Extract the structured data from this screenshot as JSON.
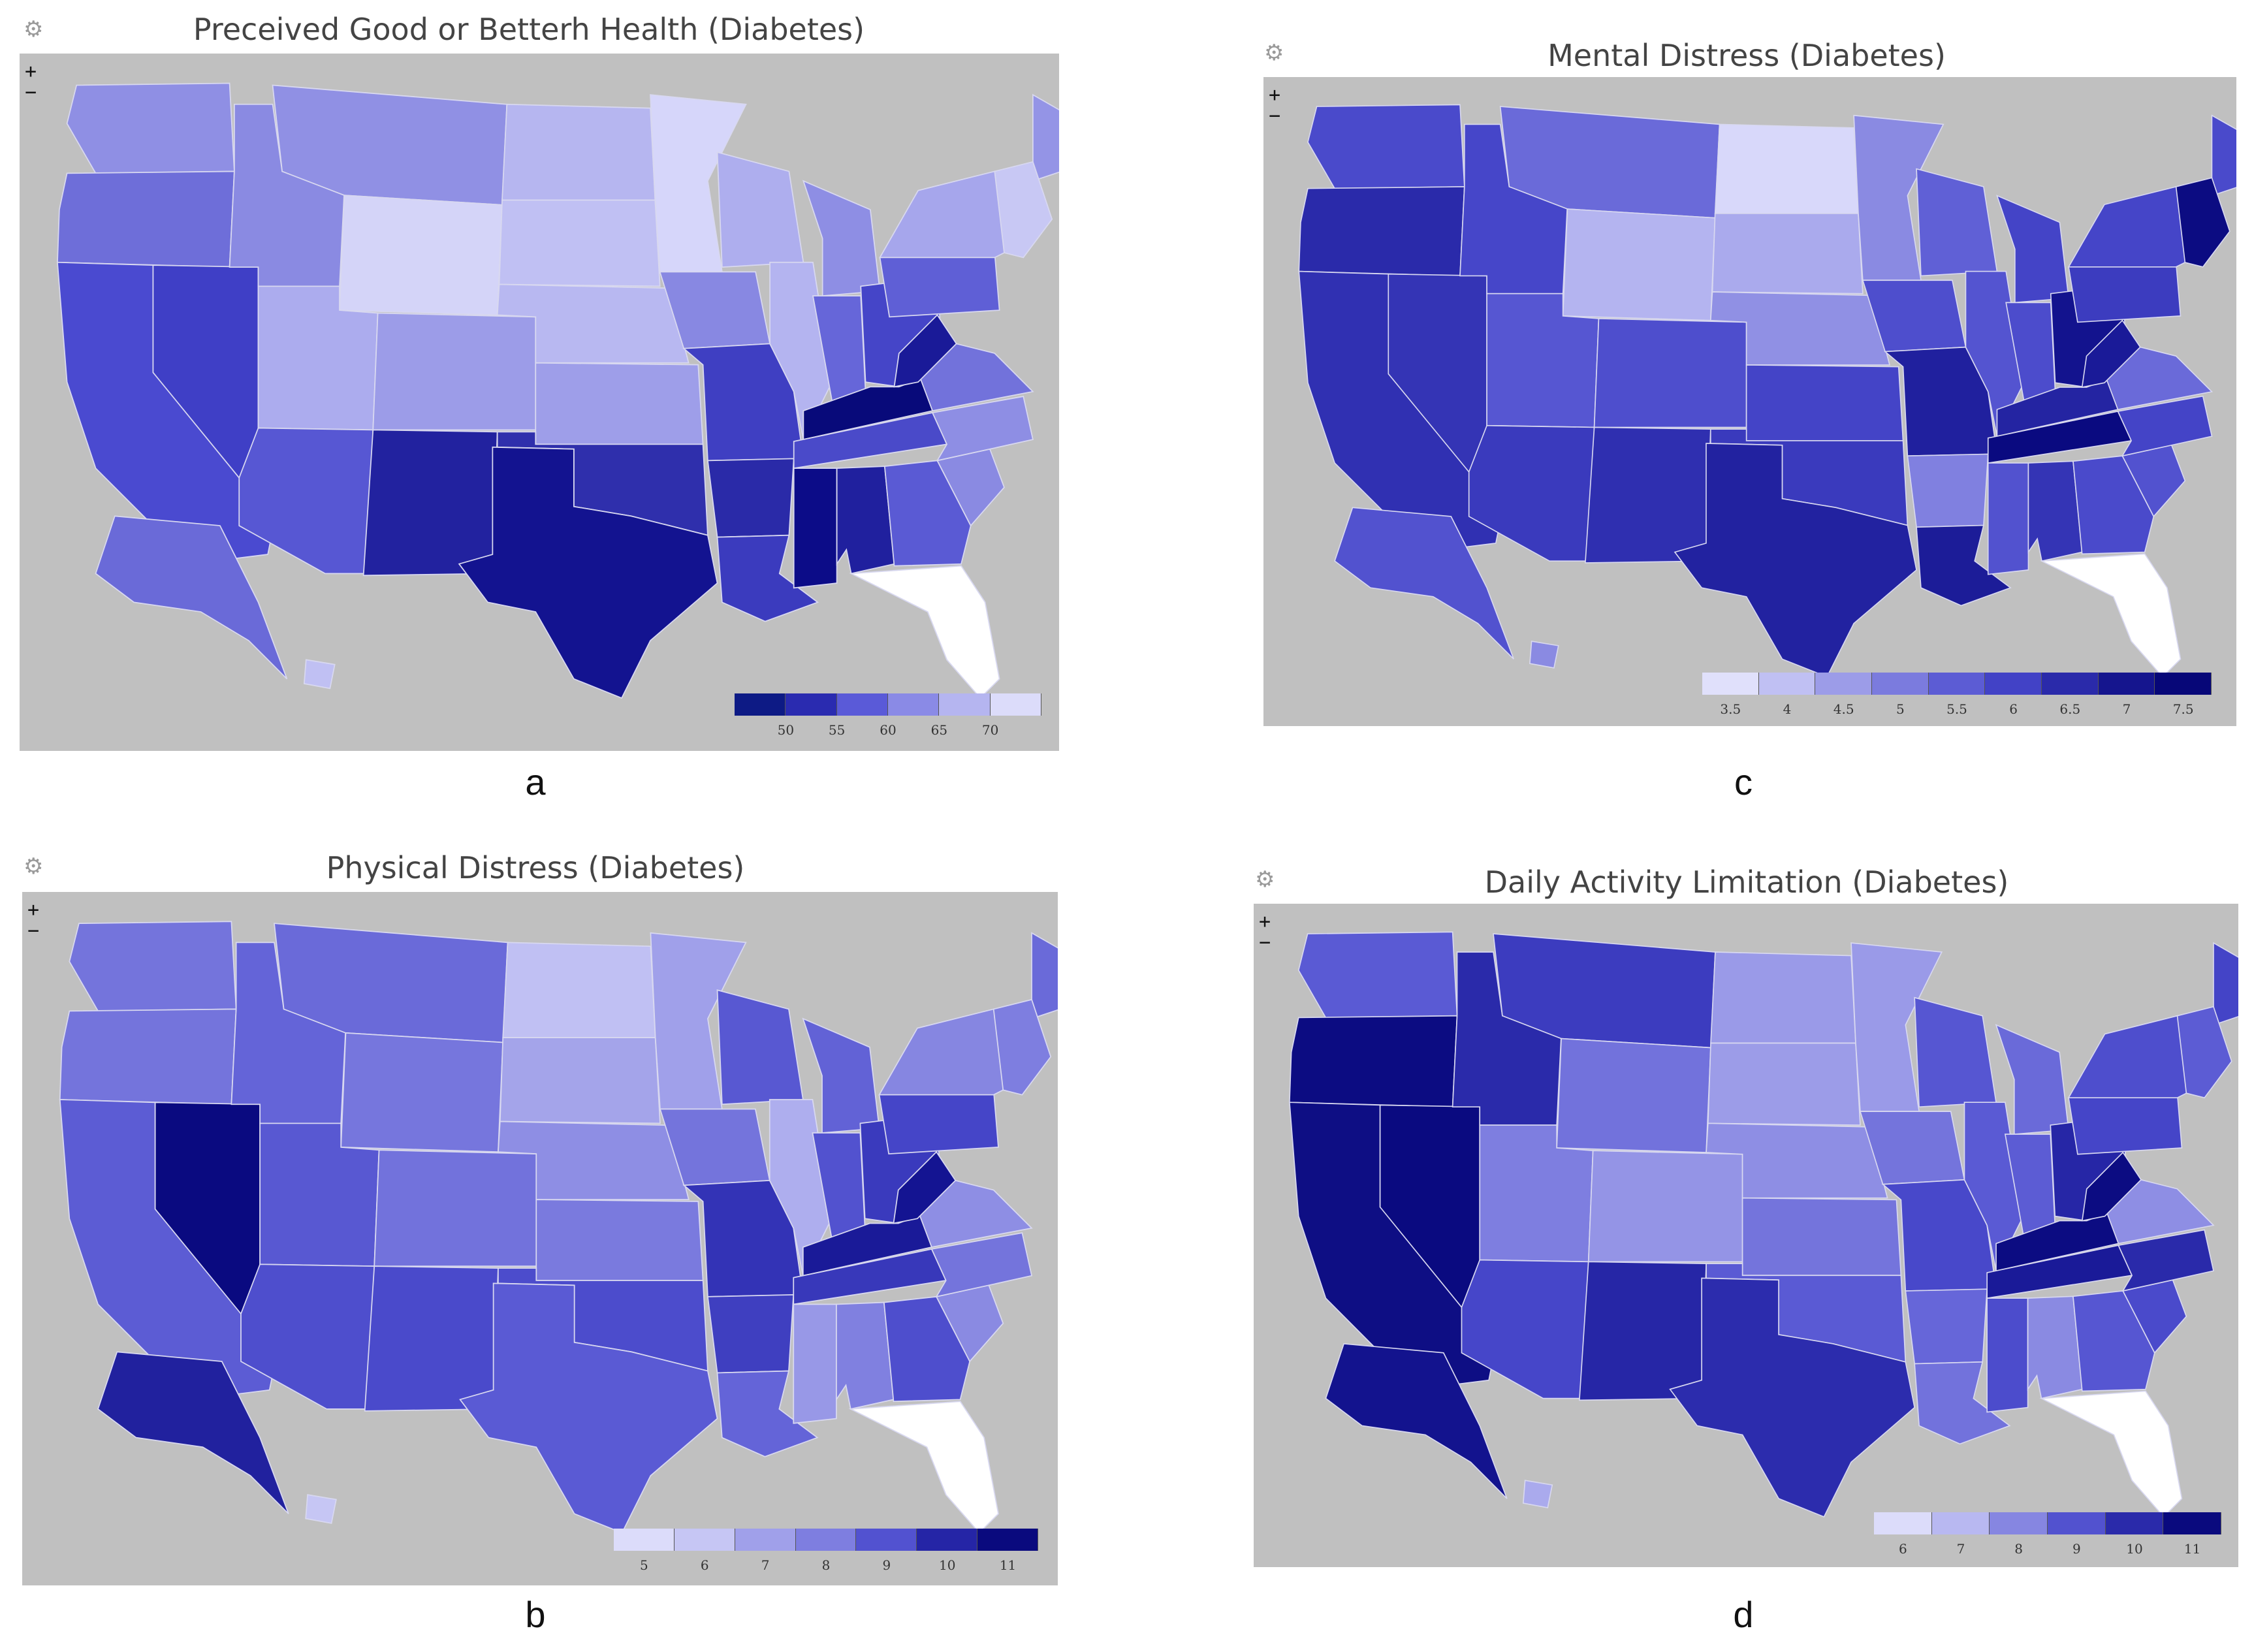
{
  "panels": [
    {
      "id": "a",
      "title": "Preceived Good or Betterh Health (Diabetes)",
      "caption": "a",
      "zoom_in": "+",
      "zoom_out": "−",
      "settings_icon": "gear-icon",
      "legend": {
        "colors": [
          "#0d1a85",
          "#2a2bb0",
          "#5a5ad8",
          "#8a8ae6",
          "#b5b5f0",
          "#dcdcfa"
        ],
        "labels": [
          "50",
          "55",
          "60",
          "65",
          "70"
        ]
      },
      "states": {
        "WA": "#8f8fe4",
        "OR": "#6e6ed9",
        "CA": "#4a4ad0",
        "NV": "#3f3fc6",
        "ID": "#8a8ae2",
        "MT": "#9090e4",
        "WY": "#d4d4f8",
        "UT": "#acacee",
        "AZ": "#5757d3",
        "CO": "#9c9ce8",
        "NM": "#22229f",
        "ND": "#b6b6f0",
        "SD": "#c0c0f3",
        "NE": "#b8b8f1",
        "KS": "#9e9ee9",
        "OK": "#2f2fac",
        "TX": "#131390",
        "MN": "#d6d6fa",
        "IA": "#8888e2",
        "MO": "#3f3fc2",
        "AR": "#2a2aa8",
        "LA": "#3b3bbe",
        "WI": "#aeaeee",
        "IL": "#b4b4f0",
        "MI": "#8e8ee4",
        "IN": "#6666d9",
        "OH": "#4545c8",
        "KY": "#080a7a",
        "TN": "#4a4ac9",
        "MS": "#0c0c88",
        "AL": "#20209e",
        "GA": "#5a5ad4",
        "FL": "#ffffff",
        "SC": "#8a8ae2",
        "NC": "#8e8ee4",
        "VA": "#7272db",
        "WV": "#1a1a98",
        "PA": "#5f5fd6",
        "NY": "#a6a6ec",
        "ME": "#9494e6",
        "NE_STATES": "#c8c8f4",
        "AK": "#6a6ad8",
        "HI": "#c0c0f3"
      }
    },
    {
      "id": "b",
      "title": "Physical Distress (Diabetes)",
      "caption": "b",
      "zoom_in": "+",
      "zoom_out": "−",
      "settings_icon": "gear-icon",
      "legend": {
        "colors": [
          "#dcdcfa",
          "#c6c6f4",
          "#a0a0ea",
          "#7e7ee0",
          "#5252d0",
          "#2525a6",
          "#0a0a7e"
        ],
        "labels": [
          "5",
          "6",
          "7",
          "8",
          "9",
          "10",
          "11"
        ]
      },
      "states": {
        "WA": "#7474dc",
        "OR": "#7474dc",
        "CA": "#5c5cd4",
        "NV": "#0a0a80",
        "ID": "#6464d8",
        "MT": "#6a6ad9",
        "WY": "#7676dd",
        "UT": "#5858d2",
        "AZ": "#4e4ecd",
        "CO": "#7272dc",
        "NM": "#4a4acb",
        "ND": "#c0c0f3",
        "SD": "#a4a4ea",
        "NE": "#8e8ee4",
        "KS": "#7a7ade",
        "OK": "#4c4ccc",
        "TX": "#5a5ad4",
        "MN": "#a0a0ea",
        "IA": "#7474dc",
        "MO": "#3333b6",
        "AR": "#3f3fc0",
        "LA": "#6464d8",
        "WI": "#5858d2",
        "IL": "#aeaeee",
        "MI": "#6262d6",
        "IN": "#5252cf",
        "OH": "#3a3abd",
        "KY": "#1a1a98",
        "TN": "#3838ba",
        "MS": "#9898e7",
        "AL": "#8080e0",
        "GA": "#4e4ecd",
        "FL": "#ffffff",
        "SC": "#8a8ae2",
        "NC": "#7474dc",
        "VA": "#8e8ee4",
        "WV": "#141492",
        "PA": "#4545c8",
        "NY": "#8686e1",
        "ME": "#6a6ad9",
        "NE_STATES": "#7e7ee0",
        "AK": "#21219e",
        "HI": "#c6c6f4"
      }
    },
    {
      "id": "c",
      "title": "Mental Distress (Diabetes)",
      "caption": "c",
      "zoom_in": "+",
      "zoom_out": "−",
      "settings_icon": "gear-icon",
      "legend": {
        "colors": [
          "#e0e0fb",
          "#c0c0f3",
          "#9c9ce8",
          "#7b7bde",
          "#5c5cd4",
          "#4242c6",
          "#2a2aaa",
          "#15158e",
          "#070778"
        ],
        "labels": [
          "3.5",
          "4",
          "4.5",
          "5",
          "5.5",
          "6",
          "6.5",
          "7",
          "7.5"
        ]
      },
      "states": {
        "WA": "#4a4acb",
        "OR": "#2a2aaa",
        "CA": "#3030b2",
        "NV": "#3434b5",
        "ID": "#4646c9",
        "MT": "#6a6ad9",
        "WY": "#b4b4f0",
        "UT": "#5656d2",
        "AZ": "#3a3abd",
        "CO": "#4e4ecd",
        "NM": "#2f2fb0",
        "ND": "#d8d8fa",
        "SD": "#aaaaed",
        "NE": "#9090e4",
        "KS": "#4444c7",
        "OK": "#3a3abd",
        "TX": "#2222a0",
        "MN": "#8a8ae2",
        "IA": "#4e4ecd",
        "MO": "#20209e",
        "AR": "#8080e0",
        "LA": "#1c1c98",
        "WI": "#6060d6",
        "IL": "#5454d0",
        "MI": "#4444c7",
        "IN": "#4c4ccc",
        "OH": "#13138e",
        "KY": "#2424a2",
        "TN": "#0a0a80",
        "MS": "#5252cf",
        "AL": "#3434b5",
        "GA": "#4a4acb",
        "FL": "#ffffff",
        "SC": "#5252cf",
        "NC": "#4444c7",
        "VA": "#6a6ad9",
        "WV": "#1a1a98",
        "PA": "#3c3cbf",
        "NY": "#4545c8",
        "ME": "#4a4acb",
        "NE_STATES": "#0c0c82",
        "AK": "#5252cf",
        "HI": "#8a8ae2"
      }
    },
    {
      "id": "d",
      "title": "Daily Activity Limitation (Diabetes)",
      "caption": "d",
      "zoom_in": "+",
      "zoom_out": "−",
      "settings_icon": "gear-icon",
      "legend": {
        "colors": [
          "#dcdcfa",
          "#b8b8f1",
          "#8686e1",
          "#5252cf",
          "#2a2aaa",
          "#0a0a7e"
        ],
        "labels": [
          "6",
          "7",
          "8",
          "9",
          "10",
          "11"
        ]
      },
      "states": {
        "WA": "#5a5ad4",
        "OR": "#0c0c82",
        "CA": "#0e0e84",
        "NV": "#0a0a80",
        "ID": "#2a2aaa",
        "MT": "#3c3cbf",
        "WY": "#7272dc",
        "UT": "#7e7ee0",
        "AZ": "#4646c9",
        "CO": "#9494e6",
        "NM": "#2626a6",
        "ND": "#9a9ae8",
        "SD": "#9c9ce8",
        "NE": "#8e8ee4",
        "KS": "#7474dc",
        "OK": "#5a5ad4",
        "TX": "#2c2cad",
        "MN": "#9a9ae8",
        "IA": "#7474dc",
        "MO": "#4848ca",
        "AR": "#6666d9",
        "LA": "#7272dc",
        "WI": "#5656d2",
        "IL": "#5a5ad4",
        "MI": "#6a6ad9",
        "IN": "#5c5cd4",
        "OH": "#2626a6",
        "KY": "#0c0c82",
        "TN": "#1a1a98",
        "MS": "#4c4ccc",
        "AL": "#8a8ae2",
        "GA": "#5656d2",
        "FL": "#ffffff",
        "SC": "#4a4acb",
        "NC": "#2a2aaa",
        "VA": "#8e8ee4",
        "WV": "#0c0c82",
        "PA": "#4545c8",
        "NY": "#4e4ecd",
        "ME": "#4444c7",
        "NE_STATES": "#5c5cd4",
        "AK": "#13138e",
        "HI": "#aaaaed"
      }
    }
  ]
}
